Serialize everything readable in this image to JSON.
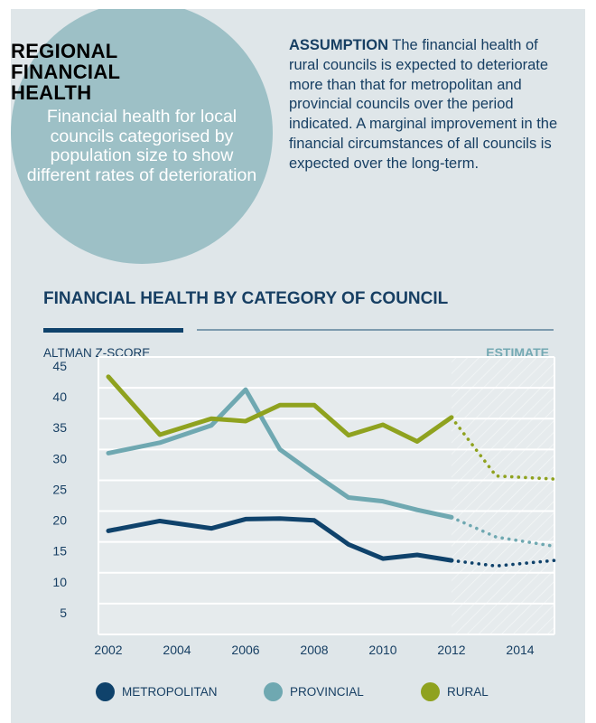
{
  "header": {
    "circle_title_lines": [
      "REGIONAL",
      "FINANCIAL",
      "HEALTH"
    ],
    "circle_subtitle": "Financial health for local councils categorised by population size to show different rates of deterioration",
    "assumption_label": "ASSUMPTION",
    "assumption_text": " The financial health of rural councils is expected to deteriorate more than that for metropolitan and provincial councils over the period indicated. A marginal improvement in the financial circumstances of all councils is expected over the long-term."
  },
  "colors": {
    "metropolitan": "#0f426b",
    "provincial": "#6fa8b1",
    "rural": "#8fa21f",
    "text": "#173f63",
    "estimate": "#74a9b3",
    "circle": "#9dc0c6",
    "panel": "#dfe6e9"
  },
  "chart_data": {
    "type": "line",
    "title": "FINANCIAL HEALTH BY CATEGORY OF COUNCIL",
    "ylabel": "ALTMAN Z-SCORE",
    "xlabel": "",
    "estimate_label": "ESTIMATE",
    "estimate_region": [
      2012,
      2015
    ],
    "ylim": [
      0,
      45
    ],
    "yticks": [
      5,
      10,
      15,
      20,
      25,
      30,
      35,
      40,
      45
    ],
    "xlim": [
      2001,
      2015
    ],
    "xticks": [
      2002,
      2004,
      2006,
      2008,
      2010,
      2012,
      2014
    ],
    "grid": true,
    "legend_position": "bottom",
    "series": [
      {
        "name": "METROPOLITAN",
        "key": "metropolitan",
        "actual": {
          "x": [
            2002,
            2003.5,
            2005,
            2006,
            2007,
            2008,
            2009,
            2010,
            2011,
            2012
          ],
          "y": [
            16.8,
            18.4,
            17.2,
            18.7,
            18.8,
            18.5,
            14.6,
            12.3,
            12.9,
            12.0
          ]
        },
        "estimate": {
          "x": [
            2012,
            2013.3,
            2015
          ],
          "y": [
            12.0,
            11.1,
            12.0
          ]
        }
      },
      {
        "name": "PROVINCIAL",
        "key": "provincial",
        "actual": {
          "x": [
            2002,
            2003.5,
            2005,
            2006,
            2007,
            2008,
            2009,
            2010,
            2011,
            2012
          ],
          "y": [
            29.4,
            31.1,
            33.9,
            39.7,
            30.0,
            26.0,
            22.2,
            21.6,
            20.2,
            19.0
          ]
        },
        "estimate": {
          "x": [
            2012,
            2013.3,
            2015
          ],
          "y": [
            19.0,
            15.8,
            14.3
          ]
        }
      },
      {
        "name": "RURAL",
        "key": "rural",
        "actual": {
          "x": [
            2002,
            2003.5,
            2005,
            2006,
            2007,
            2008,
            2009,
            2010,
            2011,
            2012
          ],
          "y": [
            41.8,
            32.4,
            35.0,
            34.6,
            37.2,
            37.2,
            32.3,
            34.0,
            31.3,
            35.2
          ]
        },
        "estimate": {
          "x": [
            2012,
            2013.3,
            2015
          ],
          "y": [
            35.2,
            25.7,
            25.2
          ]
        }
      }
    ]
  }
}
